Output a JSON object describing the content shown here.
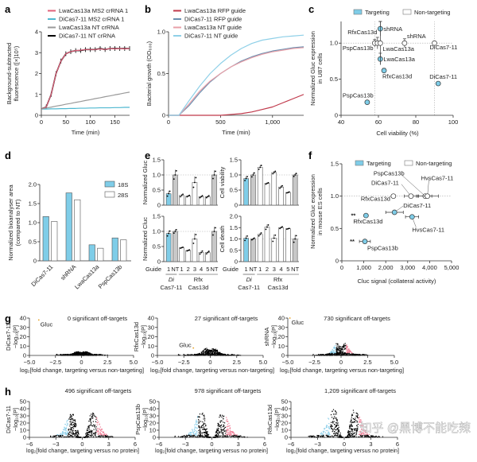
{
  "panel_labels": [
    "a",
    "b",
    "c",
    "d",
    "e",
    "f",
    "g",
    "h"
  ],
  "colors": {
    "targeting": "#7fcde8",
    "non_targeting": "#ffffff",
    "nt_bar": "#c8c8c8",
    "pink": "#e0607a",
    "cyan": "#4fb8d0",
    "gray": "#999999",
    "black": "#000000",
    "gluc": "#e8a020",
    "up": "#f08098",
    "down": "#8fd0ea"
  },
  "watermark": "知乎 @黑博不能吃辣",
  "chart_data": [
    {
      "id": "a",
      "type": "line",
      "xlabel": "Time (min)",
      "ylabel": [
        "Background-subtracted",
        "fluorescence ([×]10⁵)"
      ],
      "xlim": [
        0,
        180
      ],
      "ylim": [
        0,
        4
      ],
      "xticks": [
        0,
        50,
        100,
        150
      ],
      "xtick_labels": [
        "0",
        "50",
        "100",
        "150"
      ],
      "yticks": [
        0,
        1,
        2,
        3,
        4
      ],
      "ytick_labels": [
        "0",
        "1",
        "2",
        "3",
        "4"
      ],
      "legend_placement": "top",
      "x": [
        0,
        10,
        20,
        30,
        40,
        50,
        60,
        70,
        80,
        90,
        100,
        110,
        120,
        130,
        140,
        150,
        160,
        170,
        180
      ],
      "series": [
        {
          "name": "DiCas7-11 NT crRNA",
          "color": "#000000",
          "error_bars": true,
          "values": [
            0.3,
            0.4,
            1.0,
            2.0,
            2.6,
            2.95,
            3.05,
            3.1,
            3.1,
            3.15,
            3.15,
            3.15,
            3.2,
            3.15,
            3.2,
            3.2,
            3.2,
            3.2,
            3.2
          ]
        },
        {
          "name": "LwaCas13a MS2 crRNA 1",
          "color": "#e0607a",
          "values": [
            0.3,
            0.4,
            1.0,
            2.0,
            2.6,
            2.95,
            3.05,
            3.1,
            3.12,
            3.15,
            3.15,
            3.15,
            3.18,
            3.15,
            3.2,
            3.18,
            3.2,
            3.18,
            3.2
          ]
        },
        {
          "name": "DiCas7-11 MS2 crRNA 1",
          "color": "#4fb8d0",
          "values": [
            0.3,
            0.3,
            0.31,
            0.31,
            0.32,
            0.32,
            0.33,
            0.33,
            0.34,
            0.34,
            0.35,
            0.35,
            0.36,
            0.36,
            0.36,
            0.37,
            0.37,
            0.38,
            0.38
          ]
        },
        {
          "name": "LwaCas13a NT crRNA",
          "color": "#999999",
          "values": [
            0.3,
            0.35,
            0.39,
            0.44,
            0.48,
            0.53,
            0.57,
            0.62,
            0.66,
            0.71,
            0.75,
            0.8,
            0.84,
            0.89,
            0.93,
            0.98,
            1.02,
            1.07,
            1.11
          ]
        }
      ],
      "legend_order": [
        1,
        2,
        3,
        0
      ]
    },
    {
      "id": "b",
      "type": "line",
      "xlabel": "Time (min)",
      "ylabel": [
        "Bacterial growth (OD₆₀₀)"
      ],
      "xlim": [
        0,
        1300
      ],
      "ylim": [
        0,
        1
      ],
      "xticks": [
        0,
        500,
        1000
      ],
      "xtick_labels": [
        "0",
        "500",
        "1,000"
      ],
      "yticks": [
        0,
        0.5,
        1
      ],
      "ytick_labels": [
        "0",
        "0.5",
        "1.0"
      ],
      "legend_placement": "top",
      "x": [
        0,
        100,
        200,
        300,
        400,
        500,
        600,
        700,
        800,
        900,
        1000,
        1100,
        1200,
        1300
      ],
      "series": [
        {
          "name": "LwaCas13a RFP guide",
          "color": "#c0394b",
          "values": [
            0,
            0,
            0,
            0,
            0,
            0,
            0.01,
            0.02,
            0.04,
            0.07,
            0.1,
            0.15,
            0.2,
            0.25
          ]
        },
        {
          "name": "DiCas7-11 RFP guide",
          "color": "#6a8fb0",
          "values": [
            0,
            0,
            0.12,
            0.27,
            0.4,
            0.5,
            0.58,
            0.65,
            0.7,
            0.74,
            0.77,
            0.79,
            0.81,
            0.82
          ]
        },
        {
          "name": "LwaCas13a NT guide",
          "color": "#e8a0a8",
          "values": [
            0,
            0,
            0.14,
            0.29,
            0.41,
            0.5,
            0.58,
            0.64,
            0.69,
            0.73,
            0.76,
            0.78,
            0.8,
            0.81
          ]
        },
        {
          "name": "DiCas7-11 NT guide",
          "color": "#8fd0e8",
          "values": [
            0,
            0,
            0.18,
            0.35,
            0.5,
            0.62,
            0.72,
            0.8,
            0.86,
            0.9,
            0.92,
            0.94,
            0.95,
            0.96
          ]
        }
      ]
    },
    {
      "id": "c",
      "type": "scatter",
      "xlabel": "Cell viability (%)",
      "ylabel": [
        "Normalized Gluc expression",
        "in U87 cells"
      ],
      "xlim": [
        40,
        100
      ],
      "ylim": [
        0,
        1.3
      ],
      "xticks": [
        40,
        60,
        80,
        100
      ],
      "xtick_labels": [
        "40",
        "60",
        "80",
        "100"
      ],
      "yticks": [
        0,
        0.5,
        1
      ],
      "ytick_labels": [
        "0",
        "0.5",
        "1.0"
      ],
      "legend": [
        "Targeting",
        "Non-targeting"
      ],
      "legend_placement": "top",
      "reference_lines": {
        "y": [
          1.0
        ],
        "x": [
          58,
          90
        ]
      },
      "points": [
        {
          "label": "shRNA",
          "group": "Targeting",
          "x": 61,
          "y": 1.2,
          "yerr": 0.1
        },
        {
          "label": "LwaCas13a",
          "group": "Targeting",
          "x": 61,
          "y": 0.78,
          "yerr": 0.08
        },
        {
          "label": "RfxCas13d",
          "group": "Targeting",
          "x": 63,
          "y": 0.62,
          "yerr": 0.03
        },
        {
          "label": "PspCas13b",
          "group": "Targeting",
          "x": 54,
          "y": 0.18,
          "yerr": 0
        },
        {
          "label": "DiCas7-11",
          "group": "Targeting",
          "x": 92,
          "y": 0.44,
          "yerr": 0
        },
        {
          "label": "RfxCas13d",
          "group": "Non-targeting",
          "x": 58,
          "y": 1.0,
          "yerr": 0.05
        },
        {
          "label": "PspCas13b",
          "group": "Non-targeting",
          "x": 59.5,
          "y": 1.0,
          "yerr": 0.08
        },
        {
          "label": "LwaCas13a",
          "group": "Non-targeting",
          "x": 61,
          "y": 1.0,
          "yerr": 0.3
        },
        {
          "label": "shRNA",
          "group": "Non-targeting",
          "x": 74,
          "y": 1.0,
          "yerr": 0.06
        },
        {
          "label": "DiCas7-11",
          "group": "Non-targeting",
          "x": 90,
          "y": 1.0,
          "yerr": 0
        }
      ]
    },
    {
      "id": "d",
      "type": "bar",
      "ylabel": [
        "Normalized bioanalyser area",
        "(compared to NT)"
      ],
      "ylim": [
        0,
        2
      ],
      "yticks": [
        0,
        0.5,
        1,
        1.5,
        2
      ],
      "ytick_labels": [
        "0",
        "0.5",
        "1.0",
        "1.5",
        "2.0"
      ],
      "categories": [
        "DiCas7-11",
        "shRNA",
        "LwaCas13a",
        "PspCas13b"
      ],
      "legend_placement": "top-right",
      "series": [
        {
          "name": "18S",
          "color": "#7fcde8",
          "values": [
            1.16,
            1.78,
            0.42,
            0.6
          ]
        },
        {
          "name": "28S",
          "color": "#ffffff",
          "values": [
            1.03,
            1.6,
            0.33,
            0.55
          ]
        }
      ]
    },
    {
      "id": "e",
      "type": "bar",
      "guide_label": "Guide",
      "categories": [
        "1",
        "NT",
        "1",
        "2",
        "3",
        "4",
        "5",
        "NT"
      ],
      "groups": [
        {
          "line1": "Di",
          "line2": "Cas7-11"
        },
        {
          "line1": "Rfx",
          "line2": "Cas13d"
        }
      ],
      "subplots": [
        {
          "ylabel": "Normalized Gluc",
          "ylim": [
            0,
            1.5
          ],
          "yticks": [
            0,
            0.5,
            1,
            1.5
          ],
          "ytick_labels": [
            "0",
            "0.5",
            "1.0",
            "1.5"
          ],
          "values": [
            0.38,
            1.0,
            0.32,
            0.3,
            0.75,
            0.28,
            0.28,
            1.0
          ],
          "err": [
            0.1,
            0.17,
            0.05,
            0.03,
            0.2,
            0.04,
            0.04,
            0.15
          ]
        },
        {
          "ylabel": "Cell viability",
          "ylim": [
            0,
            1.5
          ],
          "yticks": [
            0,
            0.5,
            1,
            1.5
          ],
          "ytick_labels": [
            "0",
            "0.5",
            "1.0",
            "1.5"
          ],
          "values": [
            0.88,
            1.0,
            1.25,
            0.72,
            1.08,
            0.6,
            0.42,
            1.0
          ],
          "err": [
            0.08,
            0.08,
            0.08,
            0.03,
            0.05,
            0.05,
            0.02,
            0.06
          ]
        },
        {
          "ylabel": "Normalized Cluc",
          "ylim": [
            0,
            1.5
          ],
          "yticks": [
            0,
            0.5,
            1,
            1.5
          ],
          "ytick_labels": [
            "0",
            "0.5",
            "1.0",
            "1.5"
          ],
          "values": [
            0.93,
            1.0,
            0.46,
            0.37,
            0.75,
            0.3,
            0.3,
            1.0
          ],
          "err": [
            0.1,
            0.07,
            0.02,
            0.02,
            0.18,
            0.06,
            0.05,
            0.15
          ]
        },
        {
          "ylabel": "Cell death",
          "ylim": [
            0,
            2
          ],
          "yticks": [
            0,
            0.5,
            1,
            1.5,
            2
          ],
          "ytick_labels": [
            "0",
            "0.5",
            "1.0",
            "1.5",
            "2.0"
          ],
          "values": [
            1.03,
            1.0,
            1.2,
            1.52,
            1.03,
            1.5,
            1.45,
            1.0
          ],
          "err": [
            0.12,
            0.05,
            0.08,
            0.12,
            0.17,
            0.05,
            0.02,
            0.18
          ]
        }
      ]
    },
    {
      "id": "f",
      "type": "scatter",
      "xlabel": "Cluc signal (collateral activity)",
      "ylabel": [
        "Normalized Gluc expression",
        "in mouse ES cells"
      ],
      "xlim": [
        0,
        5000
      ],
      "ylim": [
        0,
        1.5
      ],
      "xticks": [
        0,
        1000,
        2000,
        3000,
        4000,
        5000
      ],
      "xtick_labels": [
        "0",
        "1,000",
        "2,000",
        "3,000",
        "4,000",
        "5,000"
      ],
      "yticks": [
        0,
        0.5,
        1,
        1.5
      ],
      "ytick_labels": [
        "0",
        "0.5",
        "1.0",
        "1.5"
      ],
      "legend": [
        "Targeting",
        "Non-targeting"
      ],
      "legend_placement": "top",
      "reference_lines": {
        "y": [
          1.0
        ]
      },
      "points": [
        {
          "label": "RfxCas13d",
          "group": "Targeting",
          "x": 1100,
          "y": 0.7,
          "xerr": 0,
          "significance": "**"
        },
        {
          "label": "PspCas13b",
          "group": "Targeting",
          "x": 1050,
          "y": 0.3,
          "xerr": 250,
          "significance": "**"
        },
        {
          "label": "DiCas7-11",
          "group": "Targeting",
          "x": 2400,
          "y": 0.75,
          "xerr": 400
        },
        {
          "label": "HvsCas7-11",
          "group": "Targeting",
          "x": 3200,
          "y": 0.68,
          "xerr": 300
        },
        {
          "label": "RfxCas13d",
          "group": "Non-targeting",
          "x": 2350,
          "y": 1.0,
          "xerr": 80
        },
        {
          "label": "DiCas7-11",
          "group": "Non-targeting",
          "x": 3150,
          "y": 1.0,
          "xerr": 300
        },
        {
          "label": "PspCas13b",
          "group": "Non-targeting",
          "x": 3800,
          "y": 1.0,
          "xerr": 300
        },
        {
          "label": "HvsCas7-11",
          "group": "Non-targeting",
          "x": 3900,
          "y": 1.0,
          "xerr": 500
        }
      ]
    },
    {
      "id": "g",
      "type": "scatter",
      "xlabel": "log₂[fold change, targeting versus non-targeting]",
      "ylabel_suffix": "−log₁₀[P]",
      "xlim": [
        -5,
        5
      ],
      "ylim": [
        0,
        40
      ],
      "xticks": [
        -5,
        -2.5,
        0,
        2.5,
        5
      ],
      "xtick_labels": [
        "−5.0",
        "−2.5",
        "0",
        "2.5",
        "5.0"
      ],
      "yticks": [
        0,
        10,
        20,
        30,
        40
      ],
      "ytick_labels": [
        "0",
        "10",
        "20",
        "30",
        "40"
      ],
      "plots": [
        {
          "title": "0 significant off-targets",
          "ylabel": "DiCas7-11",
          "annotation": {
            "text": "Gluc",
            "x": -4.1,
            "y": 38
          },
          "significant": 0,
          "spread": 1.2,
          "peak": 3
        },
        {
          "title": "27 significant off-targets",
          "ylabel": "RfxCas13d",
          "annotation": {
            "text": "Gluc",
            "x": -1.6,
            "y": 8
          },
          "significant": 27,
          "spread": 1.4,
          "peak": 7
        },
        {
          "title": "730 significant off-targets",
          "ylabel": "shRNA",
          "annotation": {
            "text": "Gluc",
            "x": -4.8,
            "y": 40
          },
          "significant": 730,
          "spread": 1.3,
          "peak": 12
        }
      ]
    },
    {
      "id": "h",
      "type": "scatter",
      "xlabel": "log₂[fold change, targeting versus no protein]",
      "ylabel_suffix": "−log₁₀[P]",
      "xlim": [
        -6,
        6
      ],
      "ylim": [
        0,
        50
      ],
      "xticks": [
        -6,
        -3,
        0,
        3,
        6
      ],
      "xtick_labels": [
        "−6",
        "−3",
        "0",
        "3",
        "6"
      ],
      "yticks": [
        0,
        10,
        20,
        30,
        40,
        50
      ],
      "ytick_labels": [
        "0",
        "10",
        "20",
        "30",
        "40",
        "50"
      ],
      "plots": [
        {
          "title": "496 significant off-targets",
          "ylabel": "DiCas7-11",
          "significant": 496,
          "spread": 2.8,
          "peak": 32
        },
        {
          "title": "978 significant off-targets",
          "ylabel": "PspCas13b",
          "significant": 978,
          "spread": 3.0,
          "peak": 33
        },
        {
          "title": "1,209 significant off-targets",
          "ylabel": "RfxCas13d",
          "significant": 1209,
          "spread": 3.3,
          "peak": 38
        }
      ]
    }
  ]
}
